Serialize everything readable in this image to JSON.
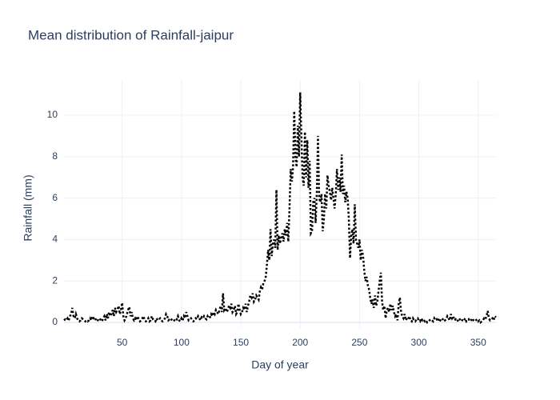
{
  "chart_data": {
    "type": "line",
    "title": "Mean distribution of Rainfall-jaipur",
    "x_label": "Day of year",
    "y_label": "Rainfall (mm)",
    "color": "#000000",
    "line_style": "dotted",
    "grid": true,
    "x": [
      1,
      2,
      3,
      4,
      5,
      6,
      7,
      8,
      9,
      10,
      11,
      12,
      13,
      14,
      15,
      16,
      17,
      18,
      19,
      20,
      21,
      22,
      23,
      24,
      25,
      26,
      27,
      28,
      29,
      30,
      31,
      32,
      33,
      34,
      35,
      36,
      37,
      38,
      39,
      40,
      41,
      42,
      43,
      44,
      45,
      46,
      47,
      48,
      49,
      50,
      51,
      52,
      53,
      54,
      55,
      56,
      57,
      58,
      59,
      60,
      61,
      62,
      63,
      64,
      65,
      66,
      67,
      68,
      69,
      70,
      71,
      72,
      73,
      74,
      75,
      76,
      77,
      78,
      79,
      80,
      81,
      82,
      83,
      84,
      85,
      86,
      87,
      88,
      89,
      90,
      91,
      92,
      93,
      94,
      95,
      96,
      97,
      98,
      99,
      100,
      101,
      102,
      103,
      104,
      105,
      106,
      107,
      108,
      109,
      110,
      111,
      112,
      113,
      114,
      115,
      116,
      117,
      118,
      119,
      120,
      121,
      122,
      123,
      124,
      125,
      126,
      127,
      128,
      129,
      130,
      131,
      132,
      133,
      134,
      135,
      136,
      137,
      138,
      139,
      140,
      141,
      142,
      143,
      144,
      145,
      146,
      147,
      148,
      149,
      150,
      151,
      152,
      153,
      154,
      155,
      156,
      157,
      158,
      159,
      160,
      161,
      162,
      163,
      164,
      165,
      166,
      167,
      168,
      169,
      170,
      171,
      172,
      173,
      174,
      175,
      176,
      177,
      178,
      179,
      180,
      181,
      182,
      183,
      184,
      185,
      186,
      187,
      188,
      189,
      190,
      191,
      192,
      193,
      194,
      195,
      196,
      197,
      198,
      199,
      200,
      201,
      202,
      203,
      204,
      205,
      206,
      207,
      208,
      209,
      210,
      211,
      212,
      213,
      214,
      215,
      216,
      217,
      218,
      219,
      220,
      221,
      222,
      223,
      224,
      225,
      226,
      227,
      228,
      229,
      230,
      231,
      232,
      233,
      234,
      235,
      236,
      237,
      238,
      239,
      240,
      241,
      242,
      243,
      244,
      245,
      246,
      247,
      248,
      249,
      250,
      251,
      252,
      253,
      254,
      255,
      256,
      257,
      258,
      259,
      260,
      261,
      262,
      263,
      264,
      265,
      266,
      267,
      268,
      269,
      270,
      271,
      272,
      273,
      274,
      275,
      276,
      277,
      278,
      279,
      280,
      281,
      282,
      283,
      284,
      285,
      286,
      287,
      288,
      289,
      290,
      291,
      292,
      293,
      294,
      295,
      296,
      297,
      298,
      299,
      300,
      301,
      302,
      303,
      304,
      305,
      306,
      307,
      308,
      309,
      310,
      311,
      312,
      313,
      314,
      315,
      316,
      317,
      318,
      319,
      320,
      321,
      322,
      323,
      324,
      325,
      326,
      327,
      328,
      329,
      330,
      331,
      332,
      333,
      334,
      335,
      336,
      337,
      338,
      339,
      340,
      341,
      342,
      343,
      344,
      345,
      346,
      347,
      348,
      349,
      350,
      351,
      352,
      353,
      354,
      355,
      356,
      357,
      358,
      359,
      360,
      361,
      362,
      363,
      364,
      365
    ],
    "values": [
      0.1,
      0.15,
      0.1,
      0.2,
      0.1,
      0.3,
      0.4,
      0.7,
      0.3,
      0.2,
      0.4,
      0.2,
      0.1,
      0.05,
      0.1,
      0.2,
      0.15,
      0.1,
      0.05,
      0.1,
      0.05,
      0.1,
      0.2,
      0.1,
      0.3,
      0.2,
      0.25,
      0.1,
      0.05,
      0.15,
      0.2,
      0.1,
      0.05,
      0.2,
      0.3,
      0.1,
      0.4,
      0.2,
      0.5,
      0.3,
      0.4,
      0.6,
      0.3,
      0.7,
      0.5,
      0.6,
      0.8,
      0.4,
      0.6,
      0.95,
      0.3,
      0.1,
      0.2,
      0.4,
      0.6,
      0.75,
      0.3,
      0.5,
      0.2,
      0.1,
      0.2,
      0.1,
      0.3,
      0.15,
      0.05,
      0.1,
      0.2,
      0.3,
      0.1,
      0.05,
      0.1,
      0.2,
      0.05,
      0.1,
      0.3,
      0.15,
      0.1,
      0.05,
      0.2,
      0.1,
      0.15,
      0.2,
      0.1,
      0.05,
      0.1,
      0.2,
      0.4,
      0.3,
      0.1,
      0.15,
      0.2,
      0.1,
      0.05,
      0.1,
      0.2,
      0.15,
      0.3,
      0.1,
      0.05,
      0.2,
      0.1,
      0.3,
      0.2,
      0.5,
      0.3,
      0.1,
      0.15,
      0.2,
      0.1,
      0.05,
      0.1,
      0.2,
      0.15,
      0.3,
      0.2,
      0.1,
      0.25,
      0.2,
      0.3,
      0.2,
      0.15,
      0.3,
      0.2,
      0.25,
      0.4,
      0.3,
      0.5,
      0.4,
      0.6,
      0.5,
      0.4,
      0.6,
      0.8,
      0.5,
      1.4,
      0.6,
      0.7,
      0.5,
      0.6,
      0.8,
      0.7,
      0.9,
      0.5,
      0.6,
      0.8,
      0.4,
      0.5,
      0.9,
      0.6,
      0.4,
      0.5,
      0.7,
      0.6,
      0.9,
      0.5,
      0.8,
      1.0,
      1.3,
      1.2,
      1.4,
      1.0,
      1.1,
      1.3,
      1.2,
      1.1,
      1.5,
      1.7,
      1.6,
      1.9,
      2.0,
      2.2,
      2.8,
      3.5,
      3.0,
      4.5,
      3.2,
      3.8,
      4.0,
      3.6,
      6.4,
      3.5,
      4.2,
      3.8,
      4.1,
      4.3,
      3.9,
      4.5,
      4.2,
      4.8,
      3.9,
      5.5,
      7.4,
      6.8,
      7.5,
      10.2,
      8.0,
      7.5,
      9.5,
      8.0,
      11.1,
      9.0,
      7.0,
      6.6,
      9.2,
      7.0,
      8.8,
      6.5,
      7.8,
      4.3,
      4.4,
      5.8,
      6.0,
      4.8,
      6.2,
      9.0,
      6.0,
      5.8,
      6.2,
      4.4,
      5.0,
      6.2,
      5.5,
      7.1,
      6.6,
      6.3,
      5.9,
      6.5,
      6.0,
      5.5,
      6.2,
      7.4,
      6.4,
      7.0,
      6.3,
      8.1,
      6.2,
      6.6,
      5.8,
      6.3,
      6.0,
      5.0,
      3.1,
      4.2,
      4.5,
      3.8,
      5.7,
      4.0,
      3.8,
      3.6,
      4.0,
      3.0,
      3.5,
      3.2,
      2.5,
      2.0,
      2.2,
      1.8,
      1.6,
      1.2,
      0.9,
      1.1,
      0.7,
      1.3,
      0.8,
      1.0,
      1.5,
      2.0,
      2.4,
      1.0,
      0.6,
      0.8,
      0.2,
      0.6,
      0.7,
      0.5,
      0.9,
      0.6,
      0.8,
      0.5,
      0.3,
      0.4,
      0.1,
      0.9,
      1.2,
      0.5,
      0.3,
      0.2,
      0.4,
      0.1,
      0.2,
      0.15,
      0.3,
      0.1,
      0.05,
      0.2,
      0.1,
      0.05,
      0.15,
      0.2,
      0.1,
      0.05,
      0.2,
      0.1,
      0.15,
      0.05,
      0.1,
      0.0,
      0.05,
      0.1,
      0.15,
      0.1,
      0.05,
      0.2,
      0.1,
      0.15,
      0.05,
      0.2,
      0.1,
      0.05,
      0.15,
      0.2,
      0.1,
      0.15,
      0.3,
      0.2,
      0.1,
      0.4,
      0.2,
      0.3,
      0.1,
      0.15,
      0.05,
      0.1,
      0.2,
      0.1,
      0.05,
      0.15,
      0.1,
      0.2,
      0.05,
      0.1,
      0.15,
      0.05,
      0.1,
      0.2,
      0.1,
      0.05,
      0.1,
      0.15,
      0.05,
      0.1,
      0.0,
      0.05,
      0.1,
      0.2,
      0.15,
      0.3,
      0.55,
      0.2,
      0.1,
      0.15,
      0.2,
      0.1,
      0.3,
      0.25
    ],
    "xlim": [
      1,
      365
    ],
    "xticks": [
      50,
      100,
      150,
      200,
      250,
      300,
      350
    ],
    "ylim": [
      -0.27,
      11.7
    ],
    "yticks": [
      0,
      2,
      4,
      6,
      8,
      10
    ]
  }
}
